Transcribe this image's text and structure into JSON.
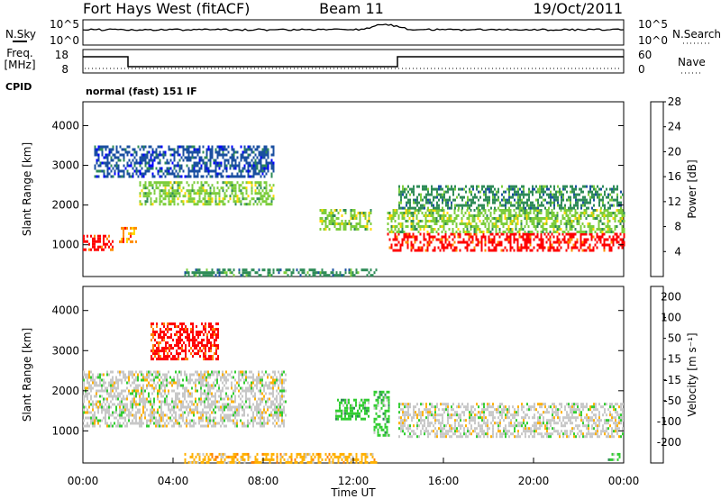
{
  "header": {
    "station": "Fort Hays West (fitACF)",
    "beam": "Beam 11",
    "date": "19/Oct/2011"
  },
  "strip": {
    "nsky_label": "N.Sky",
    "nsearch_label": "N.Search",
    "noise_ticks_left": [
      "10^5",
      "10^0"
    ],
    "noise_ticks_right": [
      "10^5",
      "10^0"
    ],
    "freq_label_1": "Freq.",
    "freq_label_2": "[MHz]",
    "freq_ticks": [
      "18",
      "8"
    ],
    "nave_label": "Nave",
    "nave_ticks": [
      "60",
      "0"
    ],
    "cpid_label": "CPID",
    "cpid_value": "normal (fast) 151 IF"
  },
  "chart_data": [
    {
      "type": "heatmap",
      "name": "power",
      "ylabel": "Slant Range [km]",
      "yticks": [
        "1000",
        "2000",
        "3000",
        "4000"
      ],
      "ylim": [
        200,
        4600
      ],
      "colorbar_label": "Power [dB]",
      "colorbar_ticks": [
        "4",
        "8",
        "12",
        "16",
        "20",
        "24",
        "28"
      ],
      "colors": [
        "#0000ff",
        "#1a4fa0",
        "#2e8b57",
        "#7ccd3c",
        "#ffd700",
        "#ff8c00",
        "#ff0000"
      ],
      "regions": [
        {
          "t0": 0.0,
          "t1": 1.3,
          "r0": 900,
          "r1": 1250,
          "level": 6
        },
        {
          "t0": 1.6,
          "t1": 2.4,
          "r0": 1100,
          "r1": 1450,
          "level": 5
        },
        {
          "t0": 13.5,
          "t1": 24.0,
          "r0": 850,
          "r1": 1300,
          "level": 6
        },
        {
          "t0": 13.5,
          "t1": 24.0,
          "r0": 1300,
          "r1": 1900,
          "level": 3
        },
        {
          "t0": 2.5,
          "t1": 8.5,
          "r0": 2000,
          "r1": 2600,
          "level": 3
        },
        {
          "t0": 0.5,
          "t1": 8.5,
          "r0": 2700,
          "r1": 3500,
          "level": 1
        },
        {
          "t0": 14.0,
          "t1": 24.0,
          "r0": 1900,
          "r1": 2500,
          "level": 2
        },
        {
          "t0": 10.5,
          "t1": 12.8,
          "r0": 1400,
          "r1": 1900,
          "level": 3
        },
        {
          "t0": 4.5,
          "t1": 13.0,
          "r0": 200,
          "r1": 400,
          "level": 2
        }
      ]
    },
    {
      "type": "heatmap",
      "name": "velocity",
      "xlabel": "Time UT",
      "ylabel": "Slant Range [km]",
      "xticks": [
        "00:00",
        "04:00",
        "08:00",
        "12:00",
        "16:00",
        "20:00",
        "00:00"
      ],
      "xlim": [
        0,
        24
      ],
      "yticks": [
        "1000",
        "2000",
        "3000",
        "4000"
      ],
      "ylim": [
        200,
        4600
      ],
      "colorbar_label": "Velocity [m s⁻¹]",
      "colorbar_ticks": [
        "200",
        "100",
        "50",
        "15",
        "-15",
        "-50",
        "-100",
        "-200"
      ],
      "colors": [
        "#2b3ea6",
        "#2e8b57",
        "#32cd32",
        "#c8c8c8",
        "#ffb000",
        "#ff8000",
        "#ff0000"
      ],
      "regions": [
        {
          "t0": 0.0,
          "t1": 9.0,
          "r0": 1100,
          "r1": 2500,
          "level": 3
        },
        {
          "t0": 14.0,
          "t1": 24.0,
          "r0": 850,
          "r1": 1700,
          "level": 3
        },
        {
          "t0": 3.0,
          "t1": 6.0,
          "r0": 2800,
          "r1": 3700,
          "level": 6
        },
        {
          "t0": 11.2,
          "t1": 12.7,
          "r0": 1300,
          "r1": 1800,
          "level": 2
        },
        {
          "t0": 12.9,
          "t1": 13.6,
          "r0": 900,
          "r1": 2000,
          "level": 2
        },
        {
          "t0": 4.5,
          "t1": 13.0,
          "r0": 200,
          "r1": 450,
          "level": 4
        },
        {
          "t0": 23.3,
          "t1": 23.8,
          "r0": 300,
          "r1": 450,
          "level": 2
        }
      ]
    }
  ]
}
